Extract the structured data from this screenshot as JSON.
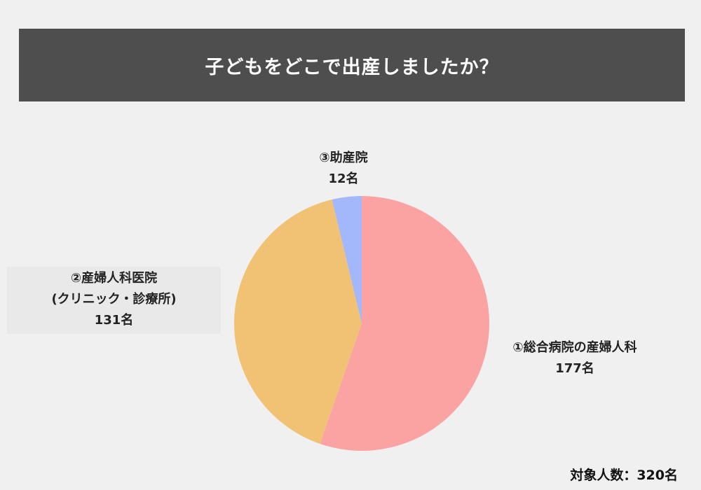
{
  "title": "子どもをどこで出産しましたか？",
  "respondents": "対象人数：320名",
  "chart_data": {
    "type": "pie",
    "title": "子どもをどこで出産しましたか？",
    "slices": [
      {
        "label": "①総合病院の産婦人科",
        "value": 177,
        "value_label": "177名",
        "color": "#fba3a3"
      },
      {
        "label": "②産婦人科医院(クリニック・診療所)",
        "label_line1": "②産婦人科医院",
        "label_line2": "(クリニック・診療所)",
        "value": 131,
        "value_label": "131名",
        "color": "#f2c274"
      },
      {
        "label": "③助産院",
        "value": 12,
        "value_label": "12名",
        "color": "#a3b8fb"
      }
    ],
    "total": 320,
    "start_angle": "12 o'clock",
    "direction": "clockwise"
  }
}
